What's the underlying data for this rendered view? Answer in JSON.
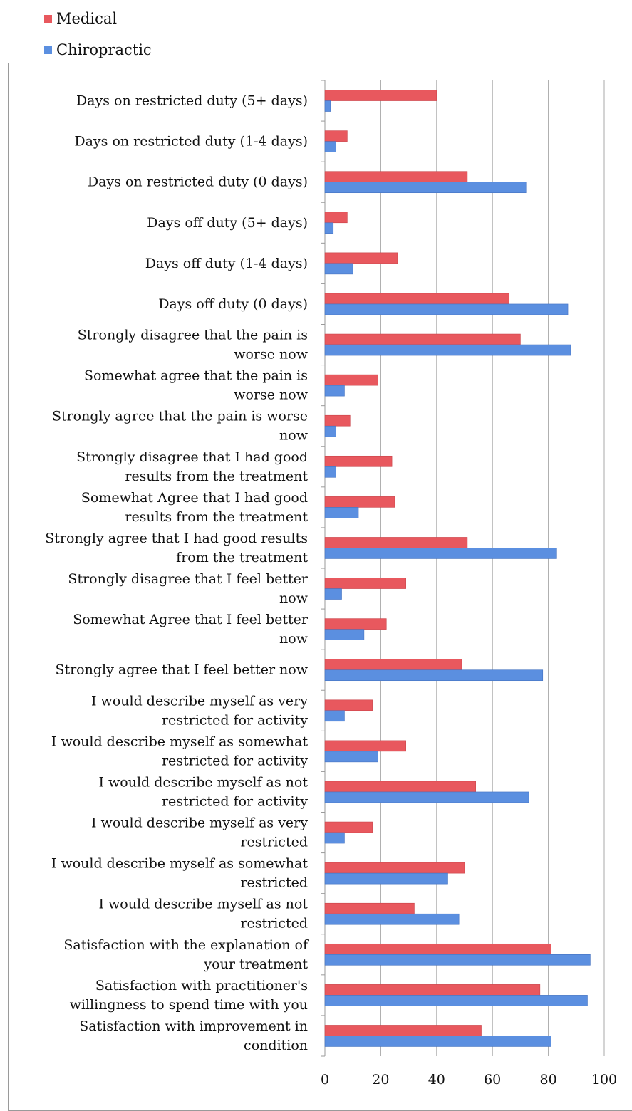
{
  "legend": {
    "items": [
      {
        "label": "Medical",
        "color": "#e8585e"
      },
      {
        "label": "Chiropractic",
        "color": "#5b8fe0"
      }
    ]
  },
  "chart_data": {
    "type": "bar",
    "orientation": "horizontal",
    "title": "",
    "xlabel": "",
    "ylabel": "",
    "xlim": [
      0,
      100
    ],
    "xticks": [
      0,
      20,
      40,
      60,
      80,
      100
    ],
    "grid": true,
    "legend_position": "top-left",
    "categories": [
      "Days on restricted duty (5+ days)",
      "Days on restricted duty (1-4 days)",
      "Days on restricted duty (0 days)",
      "Days off duty (5+ days)",
      "Days off duty (1-4 days)",
      "Days off duty (0 days)",
      "Strongly disagree that the pain is worse now",
      "Somewhat agree that the pain is worse now",
      "Strongly agree that the pain is worse now",
      "Strongly disagree that I had good results from the treatment",
      "Somewhat Agree that I had good results from the treatment",
      "Strongly agree that I had good results from the treatment",
      "Strongly disagree that I feel better now",
      "Somewhat Agree that I feel better now",
      "Strongly agree that I feel better now",
      "I would describe myself as very restricted for activity",
      "I would describe myself as somewhat restricted for activity",
      "I would describe myself as not restricted for activity",
      "I would describe myself as very restricted",
      "I would describe myself as somewhat restricted",
      "I would describe myself as not restricted",
      "Satisfaction with the explanation of your treatment",
      "Satisfaction with practitioner's willingness to spend time with you",
      "Satisfaction with improvement in condition"
    ],
    "label_lines": [
      [
        "Days on restricted duty (5+ days)"
      ],
      [
        "Days on restricted duty (1-4 days)"
      ],
      [
        "Days on restricted duty (0 days)"
      ],
      [
        "Days off duty (5+ days)"
      ],
      [
        "Days off duty (1-4 days)"
      ],
      [
        "Days off duty (0 days)"
      ],
      [
        "Strongly disagree that the pain is",
        "worse now"
      ],
      [
        "Somewhat agree that the pain is",
        "worse now"
      ],
      [
        "Strongly agree that the pain is worse",
        "now"
      ],
      [
        "Strongly disagree that I had good",
        "results from the treatment"
      ],
      [
        "Somewhat Agree that I had good",
        "results from the treatment"
      ],
      [
        "Strongly agree that I had good results",
        "from the treatment"
      ],
      [
        "Strongly disagree that I feel better",
        "now"
      ],
      [
        "Somewhat Agree that I feel better",
        "now"
      ],
      [
        "Strongly agree that I feel better now"
      ],
      [
        "I would describe myself as very",
        "restricted for activity"
      ],
      [
        "I would describe myself as somewhat",
        "restricted for activity"
      ],
      [
        "I would describe myself as not",
        "restricted for activity"
      ],
      [
        "I would describe myself as very",
        "restricted"
      ],
      [
        "I would describe myself as somewhat",
        "restricted"
      ],
      [
        "I would describe myself as not",
        "restricted"
      ],
      [
        "Satisfaction with the explanation of",
        "your treatment"
      ],
      [
        "Satisfaction with practitioner's",
        "willingness to spend time with you"
      ],
      [
        "Satisfaction with improvement in",
        "condition"
      ]
    ],
    "series": [
      {
        "name": "Medical",
        "color": "#e8585e",
        "values": [
          40,
          8,
          51,
          8,
          26,
          66,
          70,
          19,
          9,
          24,
          25,
          51,
          29,
          22,
          49,
          17,
          29,
          54,
          17,
          50,
          32,
          81,
          77,
          56
        ]
      },
      {
        "name": "Chiropractic",
        "color": "#5b8fe0",
        "values": [
          2,
          4,
          72,
          3,
          10,
          87,
          88,
          7,
          4,
          4,
          12,
          83,
          6,
          14,
          78,
          7,
          19,
          73,
          7,
          44,
          48,
          95,
          94,
          81
        ]
      }
    ]
  }
}
